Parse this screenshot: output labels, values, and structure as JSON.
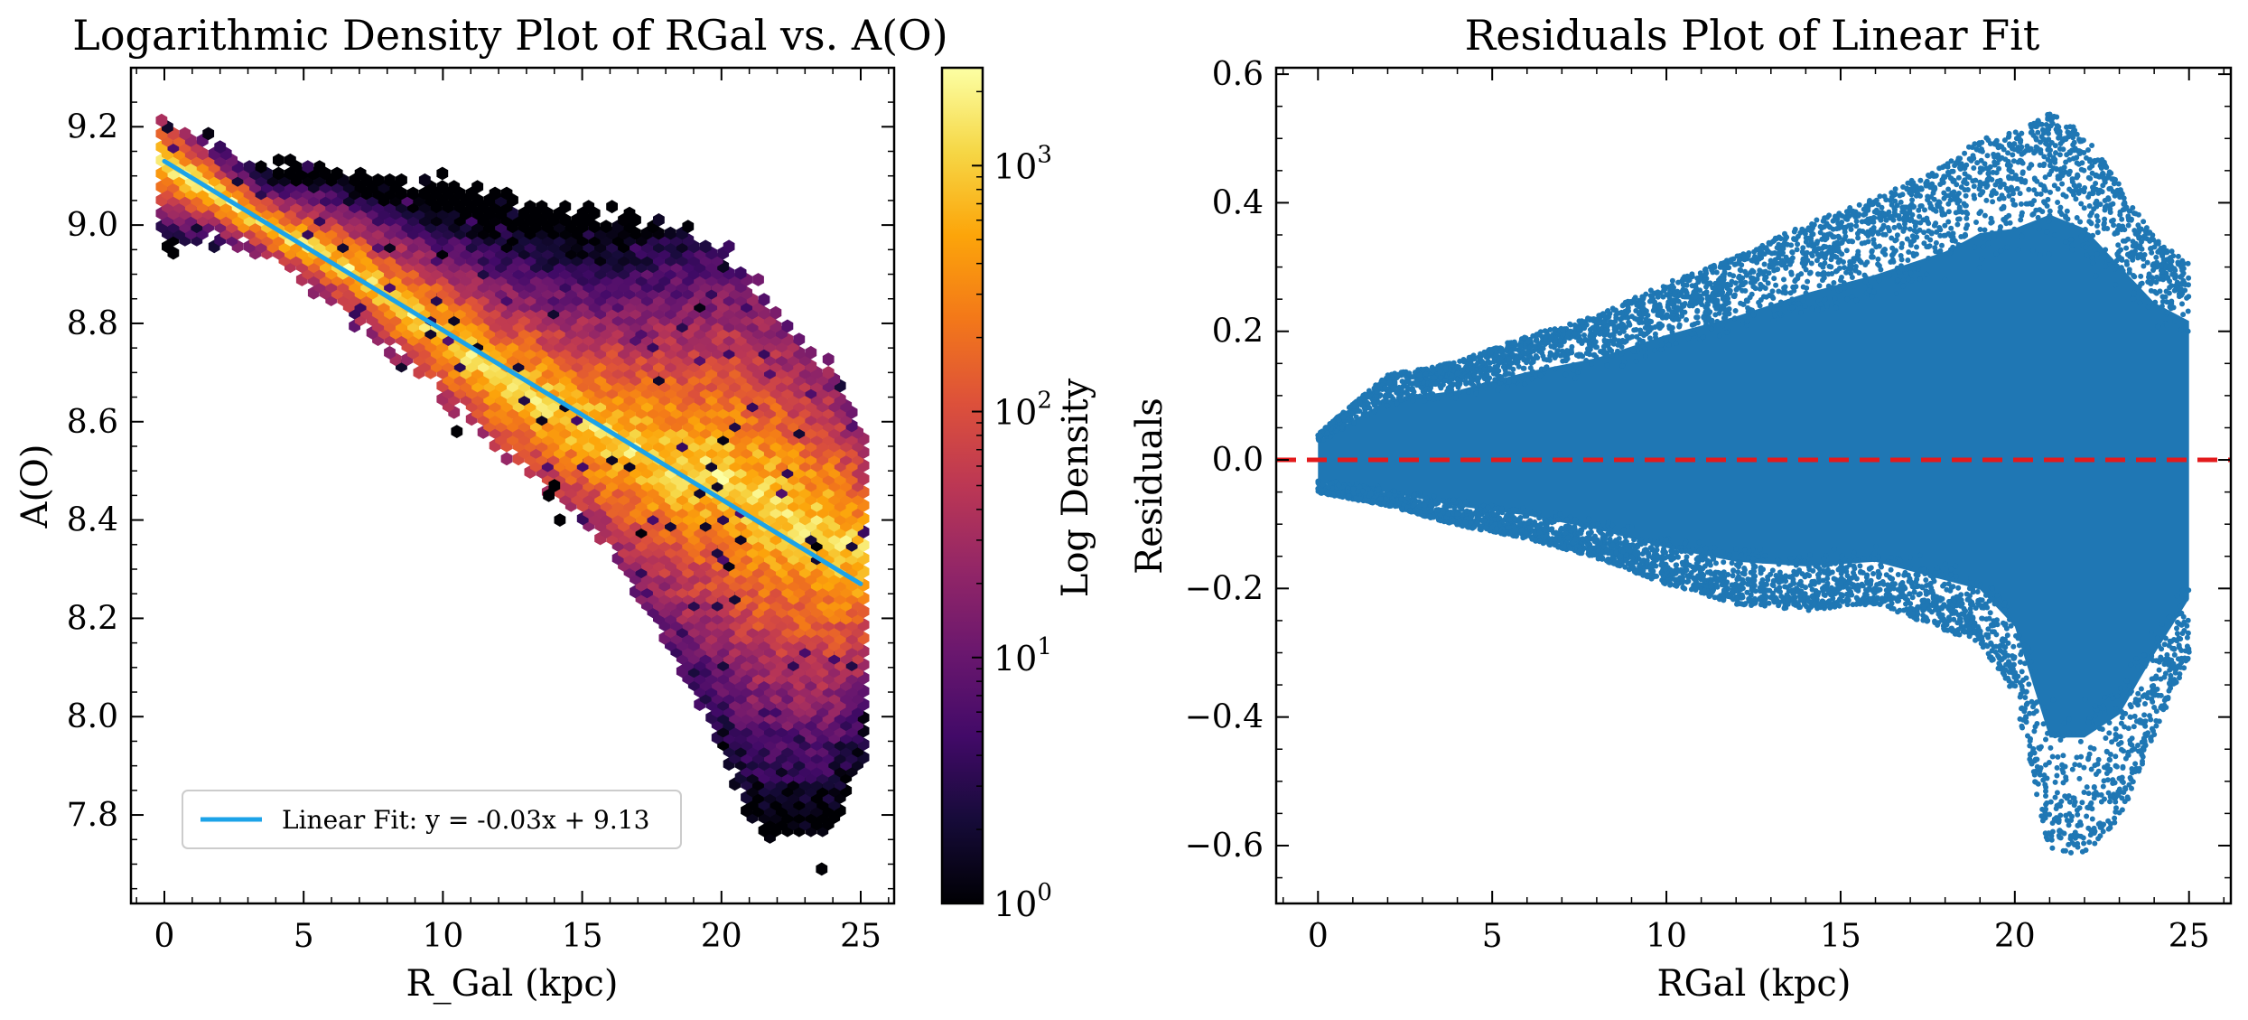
{
  "chart_data": [
    {
      "type": "heatmap",
      "subtype": "hexbin",
      "title": "Logarithmic Density Plot of RGal vs. A(O)",
      "xlabel": "R_Gal (kpc)",
      "ylabel": "A(O)",
      "xlim": [
        -1.2,
        26.2
      ],
      "ylim": [
        7.62,
        9.32
      ],
      "xticks": [
        0,
        5,
        10,
        15,
        20,
        25
      ],
      "yticks": [
        7.8,
        8.0,
        8.2,
        8.4,
        8.6,
        8.8,
        9.0,
        9.2
      ],
      "xtick_labels": [
        "0",
        "5",
        "10",
        "15",
        "20",
        "25"
      ],
      "ytick_labels": [
        "7.8",
        "8.0",
        "8.2",
        "8.4",
        "8.6",
        "8.8",
        "9.0",
        "9.2"
      ],
      "colormap": "inferno",
      "colorbar": {
        "label": "Log Density",
        "scale": "log",
        "range": [
          1,
          2500
        ],
        "ticks": [
          1,
          10,
          100,
          1000
        ],
        "tick_bases": [
          "10",
          "10",
          "10",
          "10"
        ],
        "tick_exponents": [
          "0",
          "1",
          "2",
          "3"
        ]
      },
      "envelope": {
        "x": [
          0,
          2,
          4,
          6,
          8,
          10,
          12,
          14,
          16,
          18,
          20,
          21,
          22,
          23,
          24,
          25
        ],
        "upper": [
          9.22,
          9.15,
          9.12,
          9.1,
          9.09,
          9.09,
          9.06,
          9.04,
          9.03,
          9.0,
          8.95,
          8.9,
          8.82,
          8.75,
          8.7,
          8.6
        ],
        "lower": [
          8.96,
          8.97,
          8.93,
          8.83,
          8.75,
          8.66,
          8.55,
          8.45,
          8.35,
          8.15,
          7.95,
          7.8,
          7.76,
          7.76,
          7.76,
          7.9
        ],
        "ridge": [
          9.13,
          9.06,
          8.99,
          8.94,
          8.86,
          8.78,
          8.69,
          8.63,
          8.57,
          8.52,
          8.49,
          8.45,
          8.42,
          8.38,
          8.36,
          8.33
        ]
      },
      "fit": {
        "slope": -0.0344,
        "intercept": 9.13,
        "x_range": [
          0,
          25
        ]
      },
      "legend": {
        "label": "Linear Fit: y = -0.03x + 9.13",
        "location": "lower-left",
        "color": "#1CA3E8"
      }
    },
    {
      "type": "scatter",
      "title": "Residuals Plot of Linear Fit",
      "xlabel": "RGal (kpc)",
      "ylabel": "Residuals",
      "xlim": [
        -1.2,
        26.2
      ],
      "ylim": [
        -0.69,
        0.61
      ],
      "xticks": [
        0,
        5,
        10,
        15,
        20,
        25
      ],
      "yticks": [
        -0.6,
        -0.4,
        -0.2,
        0.0,
        0.2,
        0.4,
        0.6
      ],
      "xtick_labels": [
        "0",
        "5",
        "10",
        "15",
        "20",
        "25"
      ],
      "ytick_labels": [
        "−0.6",
        "−0.4",
        "−0.2",
        "0.0",
        "0.2",
        "0.4",
        "0.6"
      ],
      "marker_color": "#1F77B4",
      "envelope": {
        "x": [
          0,
          2,
          4,
          6,
          8,
          10,
          12,
          14,
          16,
          18,
          19,
          20,
          21,
          22,
          23,
          24,
          25
        ],
        "upper": [
          0.04,
          0.13,
          0.15,
          0.19,
          0.22,
          0.27,
          0.31,
          0.36,
          0.4,
          0.45,
          0.49,
          0.5,
          0.53,
          0.5,
          0.42,
          0.34,
          0.3
        ],
        "lower": [
          -0.05,
          -0.07,
          -0.1,
          -0.12,
          -0.15,
          -0.19,
          -0.22,
          -0.23,
          -0.22,
          -0.26,
          -0.28,
          -0.36,
          -0.6,
          -0.6,
          -0.55,
          -0.42,
          -0.3
        ]
      },
      "reference_line": {
        "y": 0,
        "color": "#E31A1C",
        "style": "dashed"
      }
    }
  ]
}
